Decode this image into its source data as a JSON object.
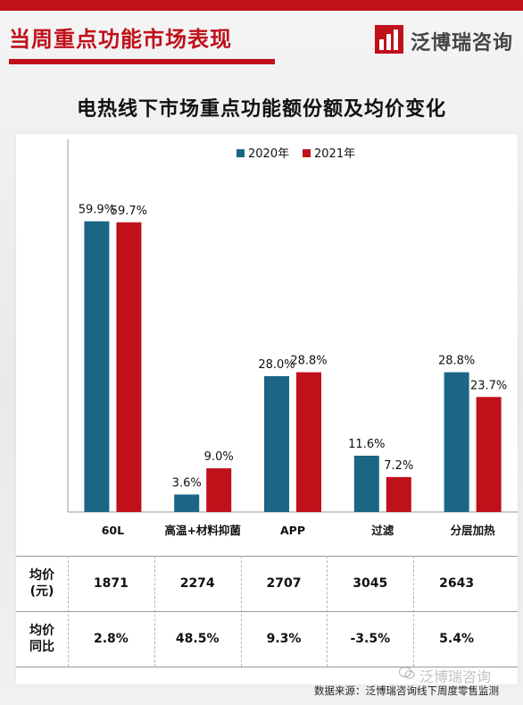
{
  "header": {
    "title": "当周重点功能市场表现",
    "brand": "泛博瑞咨询",
    "accent_color": "#c0101a",
    "logo_icon": "bar-chart-icon"
  },
  "chart_data": {
    "type": "bar",
    "title": "电热线下市场重点功能额份额及均价变化",
    "categories": [
      "60L",
      "高温+材料抑菌",
      "APP",
      "过滤",
      "分层加热"
    ],
    "series": [
      {
        "name": "2020年",
        "color": "#1b6585",
        "values": [
          59.9,
          3.6,
          28.0,
          11.6,
          28.8
        ],
        "labels": [
          "59.9%",
          "3.6%",
          "28.0%",
          "11.6%",
          "28.8%"
        ]
      },
      {
        "name": "2021年",
        "color": "#c0101a",
        "values": [
          59.7,
          9.0,
          28.8,
          7.2,
          23.7
        ],
        "labels": [
          "59.7%",
          "9.0%",
          "28.8%",
          "7.2%",
          "23.7%"
        ]
      }
    ],
    "ylim": [
      0,
      65
    ],
    "legend": "top-center",
    "grid": false
  },
  "table": {
    "rows": [
      {
        "header_line1": "均价",
        "header_line2": "(元)",
        "values": [
          "1871",
          "2274",
          "2707",
          "3045",
          "2643"
        ]
      },
      {
        "header_line1": "均价",
        "header_line2": "同比",
        "values": [
          "2.8%",
          "48.5%",
          "9.3%",
          "-3.5%",
          "5.4%"
        ]
      }
    ]
  },
  "footer": {
    "source": "数据来源：泛博瑞咨询线下周度零售监测",
    "watermark": "泛博瑞咨询"
  }
}
